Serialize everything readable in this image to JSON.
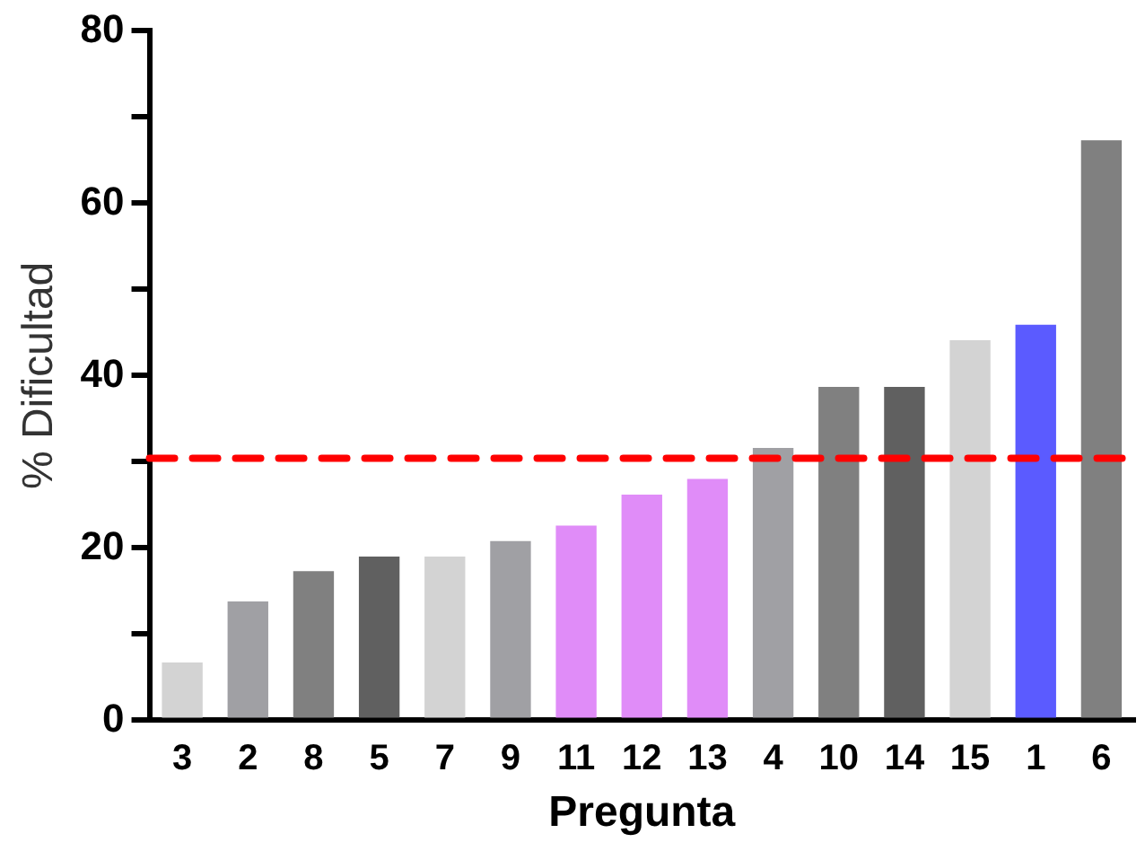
{
  "chart_data": {
    "type": "bar",
    "xlabel": "Pregunta",
    "ylabel": "% Dificultad",
    "categories": [
      "3",
      "2",
      "8",
      "5",
      "7",
      "9",
      "11",
      "12",
      "13",
      "4",
      "10",
      "14",
      "15",
      "1",
      "6"
    ],
    "values": [
      6.7,
      13.8,
      17.3,
      19,
      19,
      20.8,
      22.6,
      26.2,
      28,
      31.6,
      38.7,
      38.7,
      44.1,
      45.9,
      67.3
    ],
    "colors": [
      "#d3d3d3",
      "#a0a0a4",
      "#808080",
      "#606060",
      "#d3d3d3",
      "#a0a0a4",
      "#e08cf8",
      "#e08cf8",
      "#e08cf8",
      "#a0a0a4",
      "#808080",
      "#606060",
      "#d3d3d3",
      "#5b5bff",
      "#808080"
    ],
    "ylim": [
      0,
      80
    ],
    "yticks": [
      0,
      {
        "value": 10,
        "label": null
      },
      20,
      {
        "value": 30,
        "label": null
      },
      40,
      {
        "value": 50,
        "label": null
      },
      60,
      {
        "value": 70,
        "label": null
      },
      80
    ],
    "ref_lines": [
      {
        "axis": "y",
        "value": 30.4,
        "color": "#ff0000",
        "line_style": "dashed"
      }
    ],
    "grid": false,
    "legend": false
  }
}
